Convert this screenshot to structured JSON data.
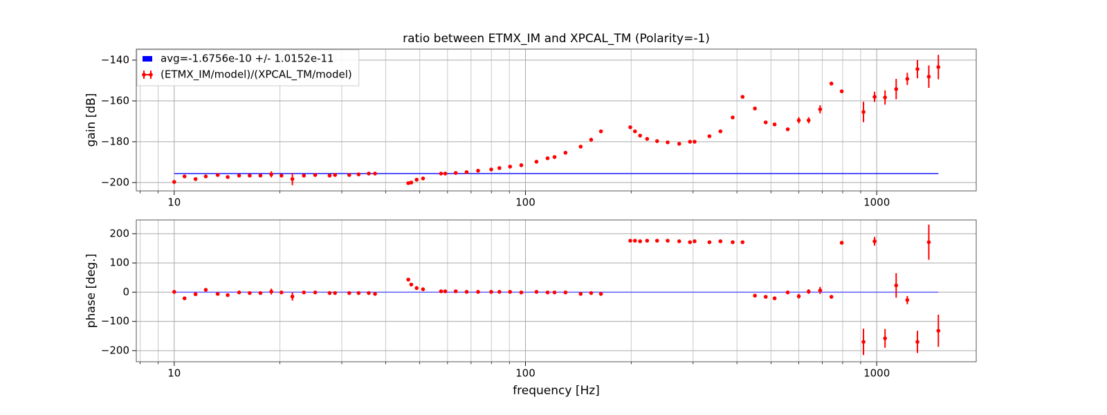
{
  "chart_data": [
    {
      "type": "scatter",
      "title": "ratio between ETMX_IM and XPCAL_TM (Polarity=-1)",
      "ylabel": "gain [dB]",
      "xscale": "log",
      "grid": true,
      "legend": "upper left",
      "xlim": [
        7.8,
        1920
      ],
      "xticks": [
        10,
        100,
        1000
      ],
      "xminorticks": [
        8,
        9,
        20,
        30,
        40,
        50,
        60,
        70,
        80,
        90,
        200,
        300,
        400,
        500,
        600,
        700,
        800,
        900
      ],
      "ylim": [
        -204.1,
        -134.6
      ],
      "yticks": [
        {
          "value": -140,
          "label": "−140"
        },
        {
          "value": -160,
          "label": "−160"
        },
        {
          "value": -180,
          "label": "−180"
        },
        {
          "value": -200,
          "label": "−200"
        }
      ],
      "x": [
        10,
        10.7,
        11.5,
        12.3,
        13.3,
        14.2,
        15.3,
        16.4,
        17.6,
        18.9,
        20.2,
        21.7,
        23.4,
        25.2,
        27.7,
        28.7,
        31.5,
        33.5,
        35.8,
        37.3,
        46.4,
        47.3,
        49,
        51.1,
        57.5,
        59.1,
        63.3,
        68,
        73.3,
        79.9,
        84.3,
        90.4,
        97.3,
        107.5,
        115.6,
        121,
        130,
        143.6,
        153.8,
        164,
        198.8,
        205,
        212,
        222,
        237,
        254,
        274,
        294,
        303,
        334,
        359,
        389,
        415,
        450,
        483,
        512,
        558,
        600,
        640,
        690,
        743,
        795,
        917,
        986,
        1056,
        1136,
        1222,
        1306,
        1407,
        1498
      ],
      "series": [
        {
          "name": "avg=-1.6756e-10 +/- 1.0152e-11",
          "type": "line",
          "color": "#0000ff",
          "x": [
            10,
            1498
          ],
          "values": [
            -195.6,
            -195.6
          ]
        },
        {
          "name": "(ETMX_IM/model)/(XPCAL_TM/model)",
          "type": "errorbar",
          "color": "#ff0000",
          "values": [
            -199.7,
            -197,
            -198.3,
            -197,
            -196.3,
            -197.3,
            -196.6,
            -196.6,
            -196.6,
            -196,
            -196.6,
            -198.3,
            -196.6,
            -196.3,
            -196.6,
            -196.3,
            -196.3,
            -196,
            -195.6,
            -195.6,
            -200.3,
            -200,
            -198.6,
            -198,
            -195.6,
            -195.6,
            -195.3,
            -194.9,
            -194.2,
            -193.6,
            -192.9,
            -192.2,
            -191.5,
            -189.8,
            -188.1,
            -187.5,
            -185.4,
            -182.4,
            -179,
            -174.9,
            -172.9,
            -174.9,
            -177,
            -178.6,
            -179.7,
            -180.3,
            -181,
            -180,
            -180,
            -177.3,
            -174.9,
            -168.1,
            -158,
            -163.7,
            -170.5,
            -171.5,
            -173.9,
            -169.5,
            -169.5,
            -164.1,
            -151.5,
            -155.3,
            -165.4,
            -158,
            -158.3,
            -154.2,
            -149.2,
            -144.4,
            -148.1,
            -143.4
          ],
          "errors": [
            0.5,
            0.5,
            0.5,
            0.5,
            0.5,
            0.5,
            0.5,
            0.5,
            0.5,
            1.5,
            0.5,
            3,
            0.5,
            0.5,
            0.5,
            0.5,
            0.5,
            0.5,
            0.5,
            0.5,
            0.5,
            0.5,
            0.5,
            0.5,
            0.5,
            0.5,
            0.5,
            0.5,
            0.5,
            0.5,
            0.5,
            0.5,
            0.5,
            0.5,
            0.5,
            0.5,
            0.5,
            0.5,
            0.5,
            0.5,
            0.5,
            0.5,
            0.5,
            0.5,
            0.5,
            0.5,
            0.5,
            0.5,
            0.5,
            0.5,
            0.5,
            0.5,
            0.5,
            0.5,
            0.5,
            0.5,
            0.5,
            1.5,
            1.5,
            2,
            0.5,
            0.5,
            5,
            2.5,
            3.5,
            5,
            3,
            4.5,
            5.5,
            6
          ]
        }
      ]
    },
    {
      "type": "scatter",
      "ylabel": "phase [deg.]",
      "xlabel": "frequency [Hz]",
      "xscale": "log",
      "grid": true,
      "xlim": [
        7.8,
        1920
      ],
      "xticks": [
        10,
        100,
        1000
      ],
      "xminorticks": [
        8,
        9,
        20,
        30,
        40,
        50,
        60,
        70,
        80,
        90,
        200,
        300,
        400,
        500,
        600,
        700,
        800,
        900
      ],
      "ylim": [
        -238,
        247
      ],
      "yticks": [
        200,
        100,
        0,
        {
          "value": -100,
          "label": "−100"
        },
        {
          "value": -200,
          "label": "−200"
        }
      ],
      "x": [
        10,
        10.7,
        11.5,
        12.3,
        13.3,
        14.2,
        15.3,
        16.4,
        17.6,
        18.9,
        20.2,
        21.7,
        23.4,
        25.2,
        27.7,
        28.7,
        31.5,
        33.5,
        35.8,
        37.3,
        46.4,
        47.3,
        49,
        51.1,
        57.5,
        59.1,
        63.3,
        68,
        73.3,
        79.9,
        84.3,
        90.4,
        97.3,
        107.5,
        115.6,
        121,
        130,
        143.6,
        153.8,
        164,
        198.8,
        205,
        212,
        222,
        237,
        254,
        274,
        294,
        303,
        334,
        359,
        389,
        415,
        450,
        483,
        512,
        558,
        600,
        640,
        690,
        743,
        795,
        917,
        986,
        1056,
        1136,
        1222,
        1306,
        1407,
        1498
      ],
      "series": [
        {
          "type": "line",
          "color": "#5555ff",
          "x": [
            10,
            1498
          ],
          "values": [
            0,
            0
          ]
        },
        {
          "type": "errorbar",
          "color": "#ff0000",
          "values": [
            1,
            -21,
            -7,
            8,
            -6,
            -10,
            -1,
            -3,
            -3,
            2,
            -1,
            -15,
            -1,
            -1,
            -3,
            -3,
            -3,
            -3,
            -3,
            -6,
            43,
            26,
            14,
            10,
            3,
            3,
            3,
            1,
            1,
            1,
            1,
            1,
            -1,
            1,
            -1,
            -1,
            -1,
            -6,
            -3,
            -6,
            176,
            176,
            174,
            176,
            176,
            176,
            174,
            171,
            174,
            171,
            174,
            171,
            171,
            -12,
            -16,
            -21,
            -1,
            -14,
            2,
            6,
            -16,
            169,
            -170,
            174,
            -158,
            23,
            -27,
            -170,
            171,
            -132
          ],
          "errors": [
            4,
            2,
            2,
            2,
            2,
            2,
            2,
            2,
            2,
            10,
            2,
            14,
            2,
            2,
            2,
            2,
            2,
            2,
            2,
            2,
            2,
            2,
            2,
            2,
            2,
            2,
            2,
            2,
            2,
            2,
            2,
            2,
            2,
            2,
            2,
            2,
            2,
            2,
            2,
            2,
            2,
            2,
            2,
            2,
            2,
            2,
            2,
            2,
            2,
            2,
            2,
            2,
            2,
            2,
            2,
            2,
            2,
            8,
            8,
            12,
            2,
            2,
            45,
            15,
            32,
            42,
            14,
            38,
            60,
            55
          ]
        }
      ]
    }
  ]
}
